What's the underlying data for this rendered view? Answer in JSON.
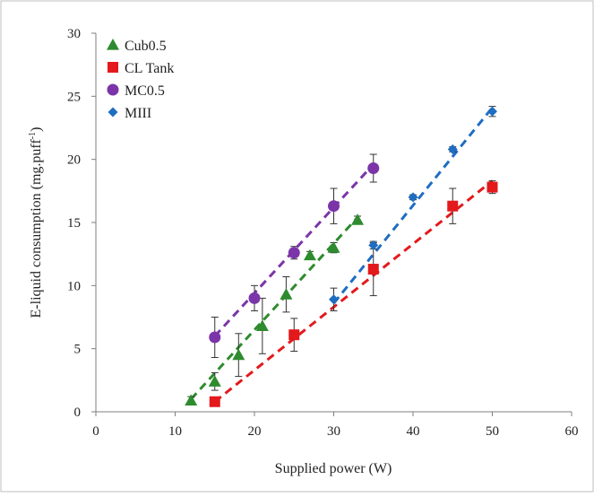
{
  "chart_data": {
    "type": "scatter",
    "title": "",
    "xlabel": "Supplied power (W)",
    "ylabel": "E-liquid consumption (mg.puff",
    "ylabel_superscript": "-1",
    "ylabel_suffix": ")",
    "xlim": [
      0,
      60
    ],
    "ylim": [
      0,
      30
    ],
    "xticks": [
      0,
      10,
      20,
      30,
      40,
      50,
      60
    ],
    "yticks": [
      0,
      5,
      10,
      15,
      20,
      25,
      30
    ],
    "grid": false,
    "legend_position": "top-left",
    "series": [
      {
        "name": "Cub0.5",
        "marker": "triangle",
        "color": "#2e8b2e",
        "x": [
          12,
          15,
          18,
          21,
          24,
          27,
          30,
          33
        ],
        "y": [
          0.9,
          2.4,
          4.5,
          6.8,
          9.3,
          12.4,
          13.0,
          15.2
        ],
        "err": [
          0.3,
          0.7,
          1.7,
          2.2,
          1.4,
          0.3,
          0.4,
          0.3
        ],
        "trend": [
          [
            12,
            1.0
          ],
          [
            33,
            15.4
          ]
        ]
      },
      {
        "name": "CL Tank",
        "marker": "square",
        "color": "#e3191c",
        "x": [
          15,
          25,
          35,
          45,
          50
        ],
        "y": [
          0.8,
          6.1,
          11.3,
          16.3,
          17.8
        ],
        "err": [
          0.2,
          1.3,
          2.1,
          1.4,
          0.5
        ],
        "trend": [
          [
            15,
            0.8
          ],
          [
            50,
            18.3
          ]
        ]
      },
      {
        "name": "MC0.5",
        "marker": "circle",
        "color": "#7b35a8",
        "x": [
          15,
          20,
          25,
          30,
          35
        ],
        "y": [
          5.9,
          9.0,
          12.6,
          16.3,
          19.3
        ],
        "err": [
          1.6,
          1.0,
          0.5,
          1.4,
          1.1
        ],
        "trend": [
          [
            15,
            6.0
          ],
          [
            35,
            19.6
          ]
        ]
      },
      {
        "name": "MIII",
        "marker": "diamond",
        "color": "#1f6dc2",
        "x": [
          30,
          35,
          40,
          45,
          50
        ],
        "y": [
          8.9,
          13.2,
          17.0,
          20.8,
          23.8
        ],
        "err": [
          0.9,
          0.3,
          0.2,
          0.2,
          0.4
        ],
        "trend": [
          [
            30,
            8.6
          ],
          [
            50,
            24.1
          ]
        ]
      }
    ]
  }
}
